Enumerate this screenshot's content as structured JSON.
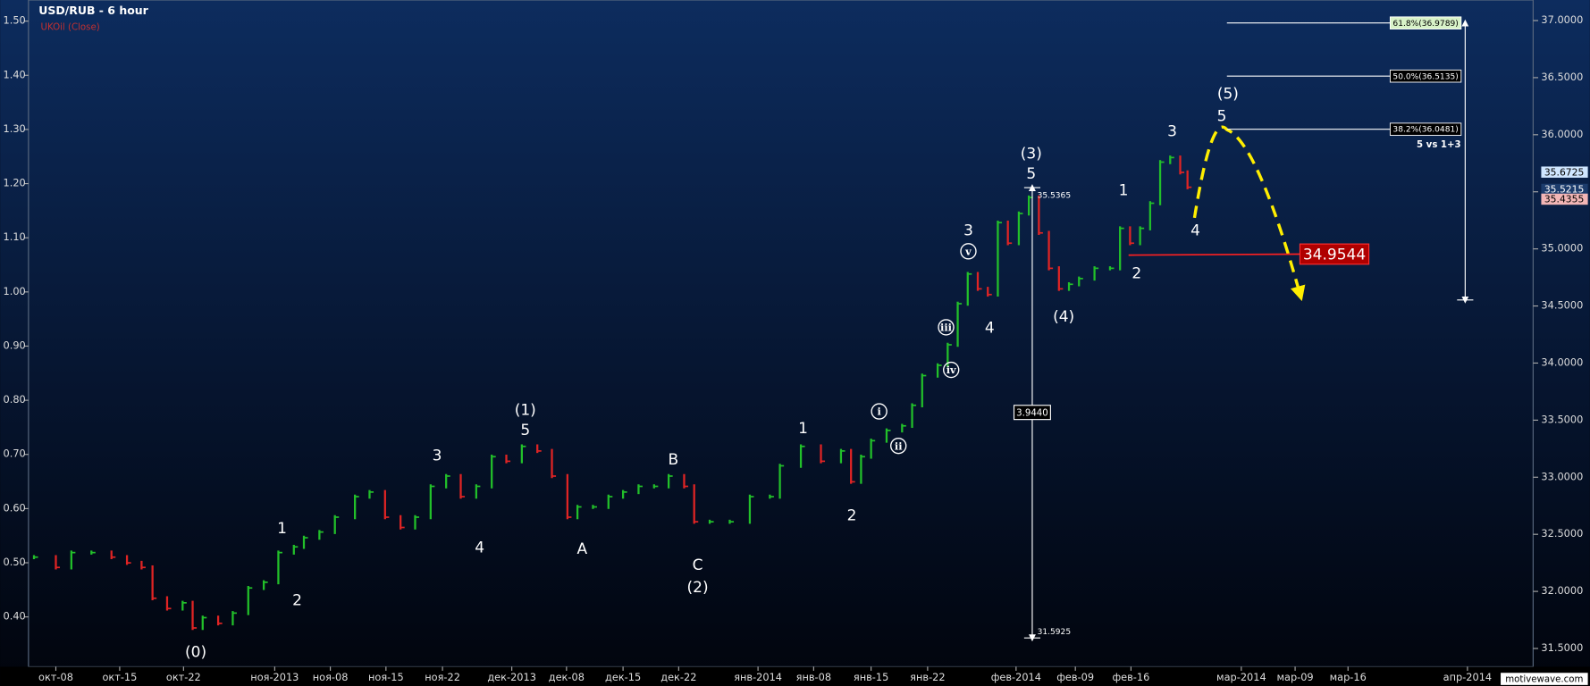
{
  "chart_data": {
    "type": "price_bars",
    "title": "USD/RUB - 6 hour",
    "subtitle": "UKOil (Close)",
    "x": [
      0.6,
      3,
      4.7,
      6.9,
      9.1,
      10.8,
      12.4,
      13.6,
      15.2,
      16.9,
      18,
      19.1,
      20.8,
      22.4,
      24.1,
      25.8,
      27.4,
      29.1,
      30.2,
      31.9,
      33.6,
      35.8,
      37.4,
      39.1,
      40.8,
      42.4,
      44.1,
      45.8,
      47.4,
      49.1,
      50.8,
      52.4,
      54.1,
      55.8,
      57.4,
      59.1,
      60.2,
      61.9,
      63.6,
      65.2,
      66.9,
      68.6,
      70.2,
      71.9,
      73,
      74.7,
      76.9,
      79.1,
      81.3,
      82.4,
      84.7,
      86.9,
      89.1,
      90.2,
      91.3,
      92.4,
      94.1,
      95.8,
      96.9,
      98,
      99.7,
      100.8,
      101.9,
      103,
      104.1,
      105.2,
      106.3,
      107.4,
      108.6,
      109.7,
      110.8,
      111.9,
      113,
      114.1,
      115.2,
      116.9,
      118.6,
      119.7,
      120.8,
      121.9,
      123,
      124.1,
      125.2,
      126.3,
      127.1
    ],
    "values": [
      32.3,
      32.21,
      32.34,
      32.34,
      32.3,
      32.25,
      32.21,
      31.94,
      31.85,
      31.9,
      31.68,
      31.77,
      31.72,
      31.81,
      32.03,
      32.08,
      32.34,
      32.39,
      32.47,
      32.52,
      32.65,
      32.83,
      32.87,
      32.65,
      32.56,
      32.65,
      32.92,
      33.01,
      32.83,
      32.92,
      33.18,
      33.14,
      33.27,
      33.23,
      33.01,
      32.65,
      32.74,
      32.74,
      32.83,
      32.87,
      32.92,
      32.92,
      33.01,
      32.92,
      32.61,
      32.61,
      32.61,
      32.83,
      32.83,
      33.1,
      33.27,
      33.14,
      33.23,
      32.96,
      33.18,
      33.32,
      33.41,
      33.45,
      33.63,
      33.89,
      33.98,
      34.16,
      34.52,
      34.78,
      34.65,
      34.6,
      35.23,
      35.05,
      35.31,
      35.45,
      35.14,
      34.83,
      34.65,
      34.69,
      34.74,
      34.83,
      34.83,
      35.18,
      35.05,
      35.18,
      35.4,
      35.76,
      35.8,
      35.67,
      35.54
    ],
    "up_color": "#22c02a",
    "down_color": "#e02424",
    "xlim": [
      0,
      165
    ],
    "xticks": [
      {
        "value": 3,
        "label": "окт-08"
      },
      {
        "value": 10,
        "label": "окт-15"
      },
      {
        "value": 17,
        "label": "окт-22"
      },
      {
        "value": 27,
        "label": "ноя-2013"
      },
      {
        "value": 33.1,
        "label": "ноя-08"
      },
      {
        "value": 39.2,
        "label": "ноя-15"
      },
      {
        "value": 45.4,
        "label": "ноя-22"
      },
      {
        "value": 53,
        "label": "дек-2013"
      },
      {
        "value": 59,
        "label": "дек-08"
      },
      {
        "value": 65.2,
        "label": "дек-15"
      },
      {
        "value": 71.3,
        "label": "дек-22"
      },
      {
        "value": 80,
        "label": "янв-2014"
      },
      {
        "value": 86.1,
        "label": "янв-08"
      },
      {
        "value": 92.4,
        "label": "янв-15"
      },
      {
        "value": 98.6,
        "label": "янв-22"
      },
      {
        "value": 108.3,
        "label": "фев-2014"
      },
      {
        "value": 114.8,
        "label": "фев-09"
      },
      {
        "value": 120.9,
        "label": "фев-16"
      },
      {
        "value": 133,
        "label": "мар-2014"
      },
      {
        "value": 138.9,
        "label": "мар-09"
      },
      {
        "value": 144.7,
        "label": "мар-16"
      },
      {
        "value": 157.8,
        "label": "апр-2014"
      }
    ],
    "ylim": [
      31.34,
      37.18
    ],
    "yticks": [
      {
        "value": 31.5,
        "label": "31.5000"
      },
      {
        "value": 32,
        "label": "32.0000"
      },
      {
        "value": 32.5,
        "label": "32.5000"
      },
      {
        "value": 33,
        "label": "33.0000"
      },
      {
        "value": 33.5,
        "label": "33.5000"
      },
      {
        "value": 34,
        "label": "34.0000"
      },
      {
        "value": 34.5,
        "label": "34.5000"
      },
      {
        "value": 35,
        "label": "35.0000"
      },
      {
        "value": 35.5,
        "label": "35.5000"
      },
      {
        "value": 36,
        "label": "36.0000"
      },
      {
        "value": 36.5,
        "label": "36.5000"
      },
      {
        "value": 37,
        "label": "37.0000"
      }
    ],
    "y2lim": [
      0.308,
      1.539
    ],
    "y2ticks": [
      {
        "value": 0.4,
        "label": "0.40"
      },
      {
        "value": 0.5,
        "label": "0.50"
      },
      {
        "value": 0.6,
        "label": "0.60"
      },
      {
        "value": 0.7,
        "label": "0.70"
      },
      {
        "value": 0.8,
        "label": "0.80"
      },
      {
        "value": 0.9,
        "label": "0.90"
      },
      {
        "value": 1,
        "label": "1.00"
      },
      {
        "value": 1.1,
        "label": "1.10"
      },
      {
        "value": 1.2,
        "label": "1.20"
      },
      {
        "value": 1.3,
        "label": "1.30"
      },
      {
        "value": 1.4,
        "label": "1.40"
      },
      {
        "value": 1.5,
        "label": "1.50"
      }
    ],
    "fib_levels": [
      {
        "value": 36.9789,
        "label": "61.8%(36.9789)"
      },
      {
        "value": 36.5135,
        "label": "50.0%(36.5135)"
      },
      {
        "value": 36.0481,
        "label": "38.2%(36.0481)"
      }
    ],
    "fib_note": "5 vs 1+3",
    "measure": {
      "high": 35.5365,
      "high_label": "35.5365",
      "low": 31.5925,
      "low_label": "31.5925",
      "range_label": "3.9440"
    },
    "target": {
      "value": 34.9544,
      "label": "34.9544"
    },
    "price_tags": [
      {
        "value": 35.6725,
        "label": "35.6725",
        "color": "#cfe6ff"
      },
      {
        "value": 35.5215,
        "label": "35.5215",
        "color": "#1c3c6c"
      },
      {
        "value": 35.4355,
        "label": "35.4355",
        "color": "#f3b6b6"
      }
    ],
    "annotations": [
      "(0)",
      "1",
      "2",
      "3",
      "4",
      "(1)",
      "5",
      "A",
      "B",
      "C",
      "(2)",
      "1",
      "2",
      "i",
      "ii",
      "iii",
      "iv",
      "3",
      "v",
      "4",
      "(3)",
      "5",
      "(4)",
      "1",
      "2",
      "3",
      "4",
      "5",
      "(5)"
    ],
    "watermark": "motivewave.com"
  }
}
